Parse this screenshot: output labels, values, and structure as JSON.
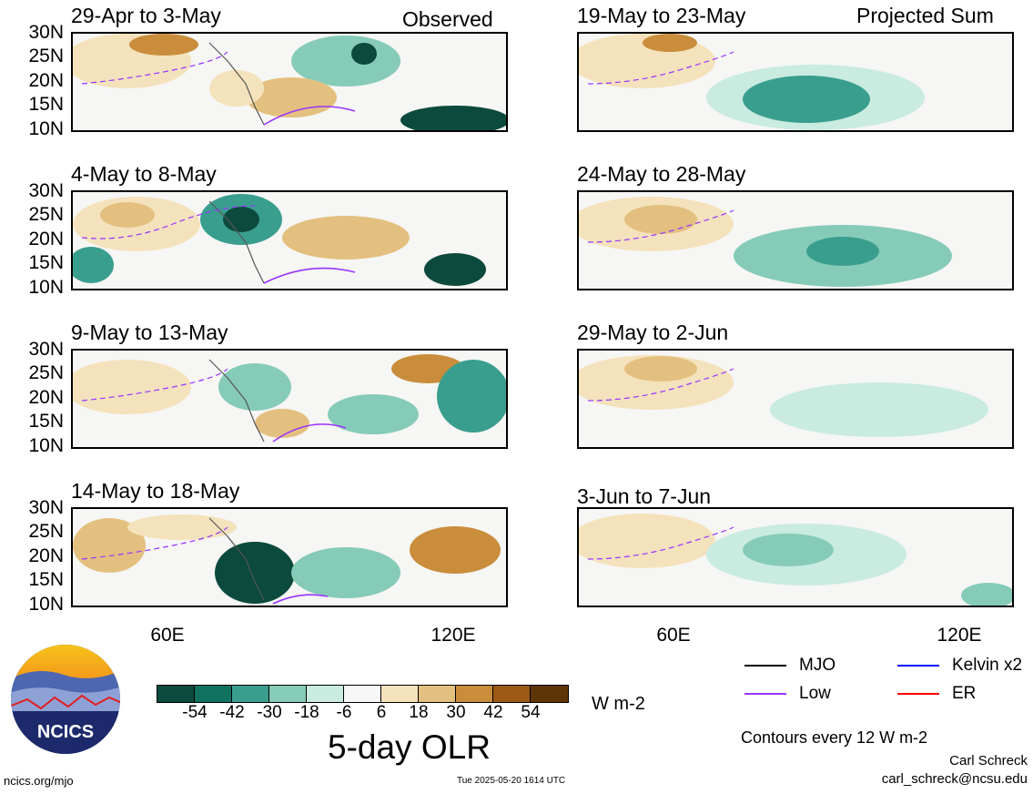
{
  "headers": {
    "observed": "Observed",
    "projected": "Projected Sum"
  },
  "panels_left": [
    {
      "title": "29-Apr to 3-May"
    },
    {
      "title": "4-May to 8-May"
    },
    {
      "title": "9-May to 13-May"
    },
    {
      "title": "14-May to 18-May"
    }
  ],
  "panels_right": [
    {
      "title": "19-May to 23-May"
    },
    {
      "title": "24-May to 28-May"
    },
    {
      "title": "29-May to 2-Jun"
    },
    {
      "title": "3-Jun to 7-Jun"
    }
  ],
  "lat_labels": [
    "30N",
    "25N",
    "20N",
    "15N",
    "10N"
  ],
  "lon_labels": [
    "60E",
    "120E"
  ],
  "colorbar": {
    "colors": [
      "#0b4a3c",
      "#10715f",
      "#3a9e8e",
      "#86cbb8",
      "#c9ebe0",
      "#f7f7f7",
      "#f4e2bc",
      "#e3c07f",
      "#c98d3c",
      "#9c5a16",
      "#5e3507"
    ],
    "ticks": [
      "-54",
      "-42",
      "-30",
      "-18",
      "-6",
      "6",
      "18",
      "30",
      "42",
      "54"
    ],
    "units": "W m-2",
    "title": "5-day OLR"
  },
  "legend": {
    "mjo": {
      "label": "MJO",
      "color": "#000000"
    },
    "kelvin": {
      "label": "Kelvin x2",
      "color": "#0000ff"
    },
    "low": {
      "label": "Low",
      "color": "#9933ff"
    },
    "er": {
      "label": "ER",
      "color": "#ff0000"
    }
  },
  "contours_note": "Contours every 12 W m-2",
  "author": {
    "name": "Carl Schreck",
    "email": "carl_schreck@ncsu.edu"
  },
  "url": "ncics.org/mjo",
  "timestamp": "Tue 2025-05-20 1614 UTC",
  "logo_text": "NCICS"
}
